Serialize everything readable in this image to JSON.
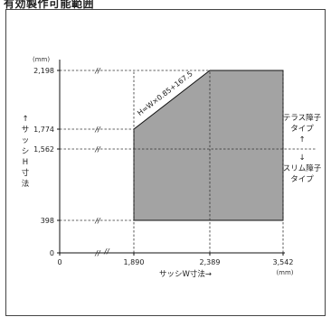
{
  "header": {
    "title": "有効製作可能範囲"
  },
  "chart_data": {
    "type": "area",
    "title": "有効製作可能範囲",
    "xlabel": "サッシW寸法→",
    "ylabel": "↑サッシH寸法",
    "x_unit": "(mm)",
    "y_unit": "(mm)",
    "x_ticks": [
      "0",
      "1,890",
      "2,389",
      "3,542"
    ],
    "y_ticks": [
      "0",
      "398",
      "1,562",
      "1,774",
      "2,198"
    ],
    "region": {
      "name": "有効製作可能範囲",
      "points": [
        [
          1890,
          398
        ],
        [
          3542,
          398
        ],
        [
          3542,
          2198
        ],
        [
          2389,
          2198
        ],
        [
          1890,
          1774
        ]
      ],
      "color": "#a3a3a3"
    },
    "formula_label": "H=W×0.85+167.5",
    "divider_y": 1562,
    "annotations": {
      "upper": [
        "テラス障子",
        "タイプ"
      ],
      "arrow_up": "↑",
      "arrow_down": "↓",
      "lower": [
        "スリム障子",
        "タイプ"
      ]
    },
    "grid": false,
    "axis_break": "//"
  }
}
